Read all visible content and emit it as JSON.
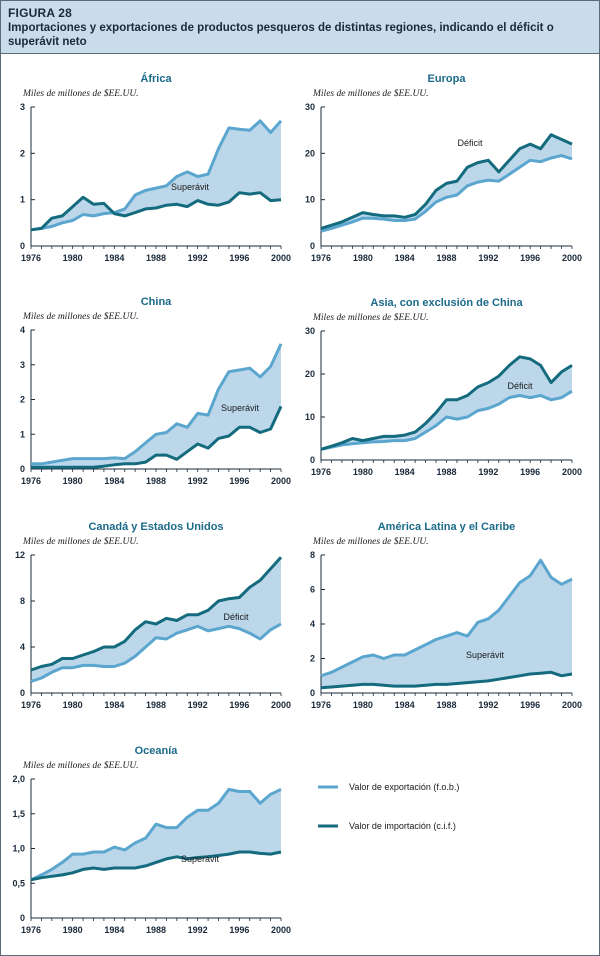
{
  "figure": {
    "label": "FIGURA 28",
    "title": "Importaciones y exportaciones de productos pesqueros de distintas regiones, indicando el déficit o superávit neto"
  },
  "colors": {
    "export": "#5ba6cf",
    "import": "#156b7e",
    "fill": "#bcd7ea",
    "title": "#1b6a8a",
    "axis": "#1a2a3a"
  },
  "legend": {
    "export_label": "Valor de exportación (f.o.b.)",
    "import_label": "Valor de importación (c.i.f.)"
  },
  "chart_data": [
    {
      "type": "area",
      "title": "África",
      "ylabel": "Miles de millones de $EE.UU.",
      "area_label": "Superávit",
      "ylim": [
        0,
        3
      ],
      "yticks": [
        "0",
        "1",
        "2",
        "3"
      ],
      "xticks": [
        "1976",
        "1980",
        "1984",
        "1988",
        "1992",
        "1996",
        "2000"
      ],
      "x": [
        1976,
        1977,
        1978,
        1979,
        1980,
        1981,
        1982,
        1983,
        1984,
        1985,
        1986,
        1987,
        1988,
        1989,
        1990,
        1991,
        1992,
        1993,
        1994,
        1995,
        1996,
        1997,
        1998,
        1999,
        2000
      ],
      "series": [
        {
          "name": "Valor de exportación (f.o.b.)",
          "values": [
            0.35,
            0.38,
            0.42,
            0.5,
            0.55,
            0.68,
            0.65,
            0.7,
            0.72,
            0.8,
            1.1,
            1.2,
            1.25,
            1.3,
            1.5,
            1.6,
            1.5,
            1.55,
            2.1,
            2.55,
            2.52,
            2.5,
            2.7,
            2.45,
            2.7
          ]
        },
        {
          "name": "Valor de importación (c.i.f.)",
          "values": [
            0.35,
            0.38,
            0.6,
            0.65,
            0.85,
            1.05,
            0.9,
            0.92,
            0.7,
            0.65,
            0.72,
            0.8,
            0.82,
            0.88,
            0.9,
            0.85,
            0.98,
            0.9,
            0.88,
            0.95,
            1.15,
            1.12,
            1.15,
            0.98,
            1.0
          ]
        }
      ]
    },
    {
      "type": "area",
      "title": "Europa",
      "ylabel": "Miles de millones de $EE.UU.",
      "area_label": "Déficit",
      "ylim": [
        0,
        30
      ],
      "yticks": [
        "0",
        "10",
        "20",
        "30"
      ],
      "xticks": [
        "1976",
        "1980",
        "1984",
        "1988",
        "1992",
        "1996",
        "2000"
      ],
      "x": [
        1976,
        1977,
        1978,
        1979,
        1980,
        1981,
        1982,
        1983,
        1984,
        1985,
        1986,
        1987,
        1988,
        1989,
        1990,
        1991,
        1992,
        1993,
        1994,
        1995,
        1996,
        1997,
        1998,
        1999,
        2000
      ],
      "series": [
        {
          "name": "Valor de exportación (f.o.b.)",
          "values": [
            3.2,
            3.8,
            4.5,
            5.2,
            6.0,
            6.0,
            5.8,
            5.5,
            5.5,
            5.8,
            7.5,
            9.5,
            10.5,
            11.0,
            13.0,
            13.8,
            14.2,
            14.0,
            15.5,
            17.0,
            18.5,
            18.2,
            19.0,
            19.5,
            18.8
          ]
        },
        {
          "name": "Valor de importación (c.i.f.)",
          "values": [
            3.8,
            4.5,
            5.2,
            6.2,
            7.2,
            6.8,
            6.5,
            6.5,
            6.2,
            6.8,
            9.0,
            12.0,
            13.5,
            14.0,
            17.0,
            18.0,
            18.5,
            16.0,
            18.5,
            21.0,
            22.0,
            21.0,
            24.0,
            23.0,
            22.0
          ]
        }
      ]
    },
    {
      "type": "area",
      "title": "China",
      "ylabel": "Miles de millones de $EE.UU.",
      "area_label": "Superávit",
      "ylim": [
        0,
        4
      ],
      "yticks": [
        "0",
        "1",
        "2",
        "3",
        "4"
      ],
      "xticks": [
        "1976",
        "1980",
        "1984",
        "1988",
        "1992",
        "1996",
        "2000"
      ],
      "x": [
        1976,
        1977,
        1978,
        1979,
        1980,
        1981,
        1982,
        1983,
        1984,
        1985,
        1986,
        1987,
        1988,
        1989,
        1990,
        1991,
        1992,
        1993,
        1994,
        1995,
        1996,
        1997,
        1998,
        1999,
        2000
      ],
      "series": [
        {
          "name": "Valor de exportación (f.o.b.)",
          "values": [
            0.15,
            0.15,
            0.2,
            0.25,
            0.3,
            0.3,
            0.3,
            0.3,
            0.32,
            0.3,
            0.5,
            0.75,
            1.0,
            1.05,
            1.3,
            1.2,
            1.6,
            1.55,
            2.3,
            2.8,
            2.85,
            2.9,
            2.65,
            2.95,
            3.6
          ]
        },
        {
          "name": "Valor de importación (c.i.f.)",
          "values": [
            0.05,
            0.05,
            0.05,
            0.05,
            0.05,
            0.05,
            0.05,
            0.08,
            0.12,
            0.15,
            0.15,
            0.2,
            0.4,
            0.4,
            0.28,
            0.5,
            0.72,
            0.6,
            0.88,
            0.95,
            1.2,
            1.2,
            1.05,
            1.15,
            1.8
          ]
        }
      ]
    },
    {
      "type": "area",
      "title": "Asia, con exclusión de China",
      "ylabel": "Miles de millones de $EE.UU.",
      "area_label": "Déficit",
      "ylim": [
        0,
        30
      ],
      "yticks": [
        "0",
        "10",
        "20",
        "30"
      ],
      "xticks": [
        "1976",
        "1980",
        "1984",
        "1988",
        "1992",
        "1996",
        "2000"
      ],
      "x": [
        1976,
        1977,
        1978,
        1979,
        1980,
        1981,
        1982,
        1983,
        1984,
        1985,
        1986,
        1987,
        1988,
        1989,
        1990,
        1991,
        1992,
        1993,
        1994,
        1995,
        1996,
        1997,
        1998,
        1999,
        2000
      ],
      "series": [
        {
          "name": "Valor de exportación (f.o.b.)",
          "values": [
            2.5,
            3.0,
            3.5,
            3.8,
            4.0,
            4.2,
            4.3,
            4.5,
            4.5,
            5.0,
            6.5,
            8.0,
            10.0,
            9.5,
            10.0,
            11.5,
            12.0,
            13.0,
            14.5,
            15.0,
            14.5,
            15.0,
            14.0,
            14.5,
            16.0
          ]
        },
        {
          "name": "Valor de importación (c.i.f.)",
          "values": [
            2.5,
            3.2,
            4.0,
            5.0,
            4.5,
            5.0,
            5.5,
            5.5,
            5.8,
            6.5,
            8.5,
            11.0,
            14.0,
            14.0,
            15.0,
            17.0,
            18.0,
            19.5,
            22.0,
            24.0,
            23.5,
            22.0,
            18.0,
            20.5,
            22.0
          ]
        }
      ]
    },
    {
      "type": "area",
      "title": "Canadá y Estados Unidos",
      "ylabel": "Miles de millones de $EE.UU.",
      "area_label": "Déficit",
      "ylim": [
        0,
        12
      ],
      "yticks": [
        "0",
        "4",
        "8",
        "12"
      ],
      "xticks": [
        "1976",
        "1980",
        "1984",
        "1988",
        "1992",
        "1996",
        "2000"
      ],
      "x": [
        1976,
        1977,
        1978,
        1979,
        1980,
        1981,
        1982,
        1983,
        1984,
        1985,
        1986,
        1987,
        1988,
        1989,
        1990,
        1991,
        1992,
        1993,
        1994,
        1995,
        1996,
        1997,
        1998,
        1999,
        2000
      ],
      "series": [
        {
          "name": "Valor de exportación (f.o.b.)",
          "values": [
            1.0,
            1.3,
            1.8,
            2.2,
            2.2,
            2.4,
            2.4,
            2.3,
            2.3,
            2.6,
            3.2,
            4.0,
            4.8,
            4.7,
            5.2,
            5.5,
            5.8,
            5.4,
            5.6,
            5.8,
            5.6,
            5.2,
            4.7,
            5.5,
            6.0
          ]
        },
        {
          "name": "Valor de importación (c.i.f.)",
          "values": [
            2.0,
            2.3,
            2.5,
            3.0,
            3.0,
            3.3,
            3.6,
            4.0,
            4.0,
            4.5,
            5.5,
            6.2,
            6.0,
            6.5,
            6.3,
            6.8,
            6.8,
            7.2,
            8.0,
            8.2,
            8.3,
            9.2,
            9.8,
            10.8,
            11.8
          ]
        }
      ]
    },
    {
      "type": "area",
      "title": "América Latina y el Caribe",
      "ylabel": "Miles de millones de $EE.UU.",
      "area_label": "Superávit",
      "ylim": [
        0,
        8
      ],
      "yticks": [
        "0",
        "2",
        "4",
        "6",
        "8"
      ],
      "xticks": [
        "1976",
        "1980",
        "1984",
        "1988",
        "1992",
        "1996",
        "2000"
      ],
      "x": [
        1976,
        1977,
        1978,
        1979,
        1980,
        1981,
        1982,
        1983,
        1984,
        1985,
        1986,
        1987,
        1988,
        1989,
        1990,
        1991,
        1992,
        1993,
        1994,
        1995,
        1996,
        1997,
        1998,
        1999,
        2000
      ],
      "series": [
        {
          "name": "Valor de exportación (f.o.b.)",
          "values": [
            1.0,
            1.2,
            1.5,
            1.8,
            2.1,
            2.2,
            2.0,
            2.2,
            2.2,
            2.5,
            2.8,
            3.1,
            3.3,
            3.5,
            3.3,
            4.1,
            4.3,
            4.8,
            5.6,
            6.4,
            6.8,
            7.7,
            6.7,
            6.3,
            6.6
          ]
        },
        {
          "name": "Valor de importación (c.i.f.)",
          "values": [
            0.3,
            0.35,
            0.4,
            0.45,
            0.5,
            0.5,
            0.45,
            0.4,
            0.4,
            0.4,
            0.45,
            0.5,
            0.5,
            0.55,
            0.6,
            0.65,
            0.7,
            0.8,
            0.9,
            1.0,
            1.1,
            1.15,
            1.2,
            1.0,
            1.1
          ]
        }
      ]
    },
    {
      "type": "area",
      "title": "Oceanía",
      "ylabel": "Miles de millones de $EE.UU.",
      "area_label": "Superávit",
      "ylim": [
        0,
        2.0
      ],
      "yticks": [
        "0",
        "0,5",
        "1,0",
        "1,5",
        "2,0"
      ],
      "xticks": [
        "1976",
        "1980",
        "1984",
        "1988",
        "1992",
        "1996",
        "2000"
      ],
      "x": [
        1976,
        1977,
        1978,
        1979,
        1980,
        1981,
        1982,
        1983,
        1984,
        1985,
        1986,
        1987,
        1988,
        1989,
        1990,
        1991,
        1992,
        1993,
        1994,
        1995,
        1996,
        1997,
        1998,
        1999,
        2000
      ],
      "series": [
        {
          "name": "Valor de exportación (f.o.b.)",
          "values": [
            0.55,
            0.62,
            0.7,
            0.8,
            0.92,
            0.92,
            0.95,
            0.95,
            1.02,
            0.98,
            1.08,
            1.15,
            1.35,
            1.3,
            1.3,
            1.45,
            1.55,
            1.55,
            1.65,
            1.85,
            1.82,
            1.82,
            1.65,
            1.78,
            1.85
          ]
        },
        {
          "name": "Valor de importación (c.i.f.)",
          "values": [
            0.55,
            0.58,
            0.6,
            0.62,
            0.65,
            0.7,
            0.72,
            0.7,
            0.72,
            0.72,
            0.72,
            0.75,
            0.8,
            0.85,
            0.88,
            0.85,
            0.87,
            0.88,
            0.9,
            0.92,
            0.95,
            0.95,
            0.93,
            0.92,
            0.95
          ]
        }
      ]
    }
  ]
}
